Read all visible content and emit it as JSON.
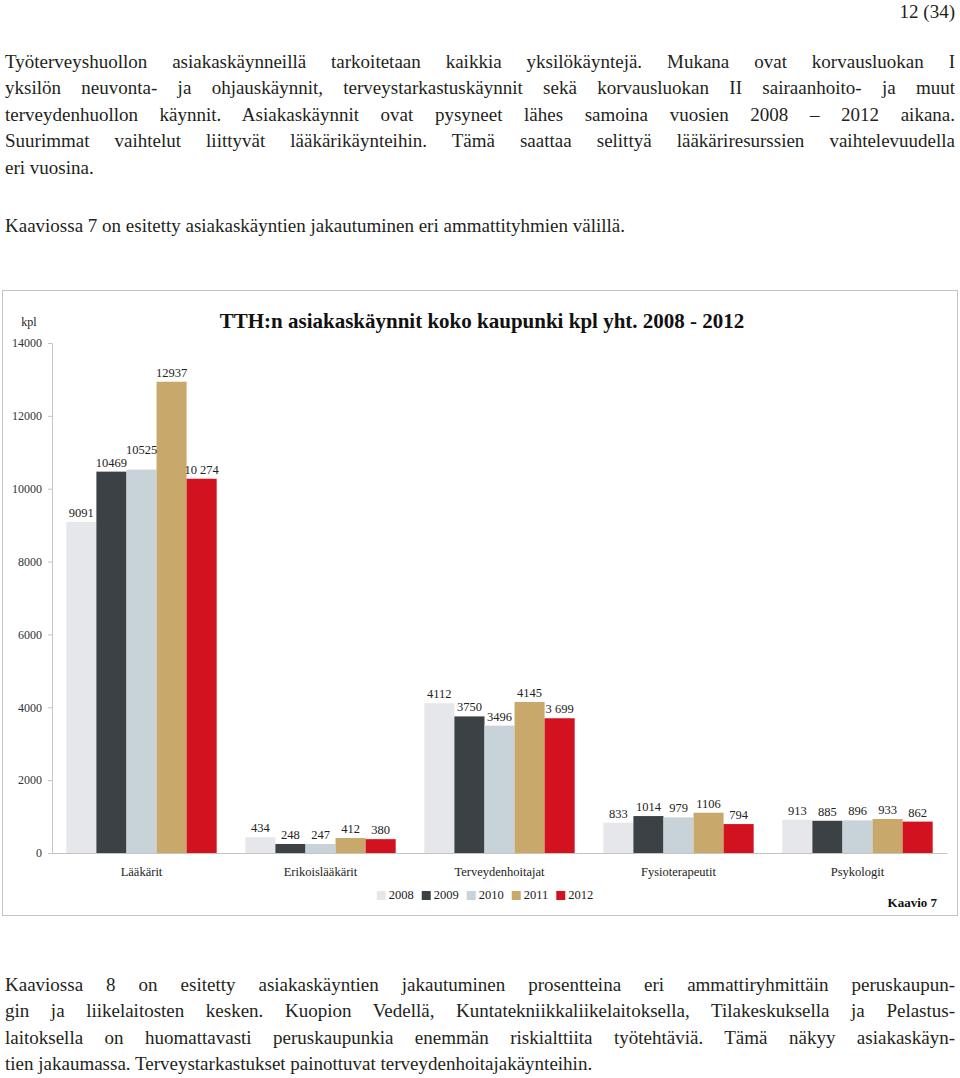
{
  "document": {
    "page_number": "12 (34)",
    "intro": [
      [
        "Työterveyshuollon asiakaskäynneillä tarkoitetaan kaikkia yksilökäyntejä. Mukana ovat korvausluokan I",
        "yksilön neuvonta- ja ohjauskäynnit, terveystarkastuskäynnit sekä korvausluokan II sairaanhoito- ja muut",
        "terveydenhuollon käynnit. Asiakaskäynnit ovat pysyneet lähes samoina vuosien 2008 – 2012 aikana.",
        "Suurimmat vaihtelut liittyvät lääkärikäynteihin. Tämä saattaa selittyä lääkäriresurssien vaihtelevuudella",
        "eri vuosina."
      ],
      [
        "Kaaviossa 7 on esitetty asiakaskäyntien jakautuminen eri ammattityhmien välillä."
      ]
    ],
    "closing": [
      [
        "Kaaviossa 8 on esitetty asiakaskäyntien jakautuminen prosentteina eri ammattiryhmittäin peruskaupun-",
        "gin ja liikelaitosten kesken.  Kuopion Vedellä, Kuntatekniikkaliikelaitoksella, Tilakeskuksella ja Pelastus-",
        "laitoksella on huomattavasti peruskaupunkia enemmän riskialttiita työtehtäviä. Tämä näkyy asiakaskäyn-",
        "tien jakaumassa. Terveystarkastukset painottuvat terveydenhoitajakäynteihin."
      ]
    ]
  },
  "chart_data": {
    "type": "bar",
    "title": "TTH:n asiakaskäynnit koko kaupunki kpl yht. 2008 - 2012",
    "y_label": "kpl",
    "annotation": "Kaavio 7",
    "categories": [
      "Lääkärit",
      "Erikoislääkärit",
      "Terveydenhoitajat",
      "Fysioterapeutit",
      "Psykologit"
    ],
    "series": [
      {
        "name": "2008",
        "color": "#e6e7ea",
        "values": [
          9091,
          434,
          4112,
          833,
          913
        ]
      },
      {
        "name": "2009",
        "color": "#3c4145",
        "values": [
          10469,
          248,
          3750,
          1014,
          885
        ]
      },
      {
        "name": "2010",
        "color": "#c8d2d9",
        "values": [
          10525,
          247,
          3496,
          979,
          896
        ]
      },
      {
        "name": "2011",
        "color": "#c9a96b",
        "values": [
          12937,
          412,
          4145,
          1106,
          933
        ]
      },
      {
        "name": "2012",
        "color": "#d3121f",
        "values": [
          10274,
          380,
          3699,
          794,
          862
        ],
        "value_labels": [
          "10 274",
          "380",
          "3 699",
          "794",
          "862"
        ]
      }
    ],
    "ylim": [
      0,
      14000
    ],
    "yticks": [
      0,
      2000,
      4000,
      6000,
      8000,
      10000,
      12000,
      14000
    ],
    "grid": false,
    "data_labels": true,
    "legend": "bottom"
  }
}
